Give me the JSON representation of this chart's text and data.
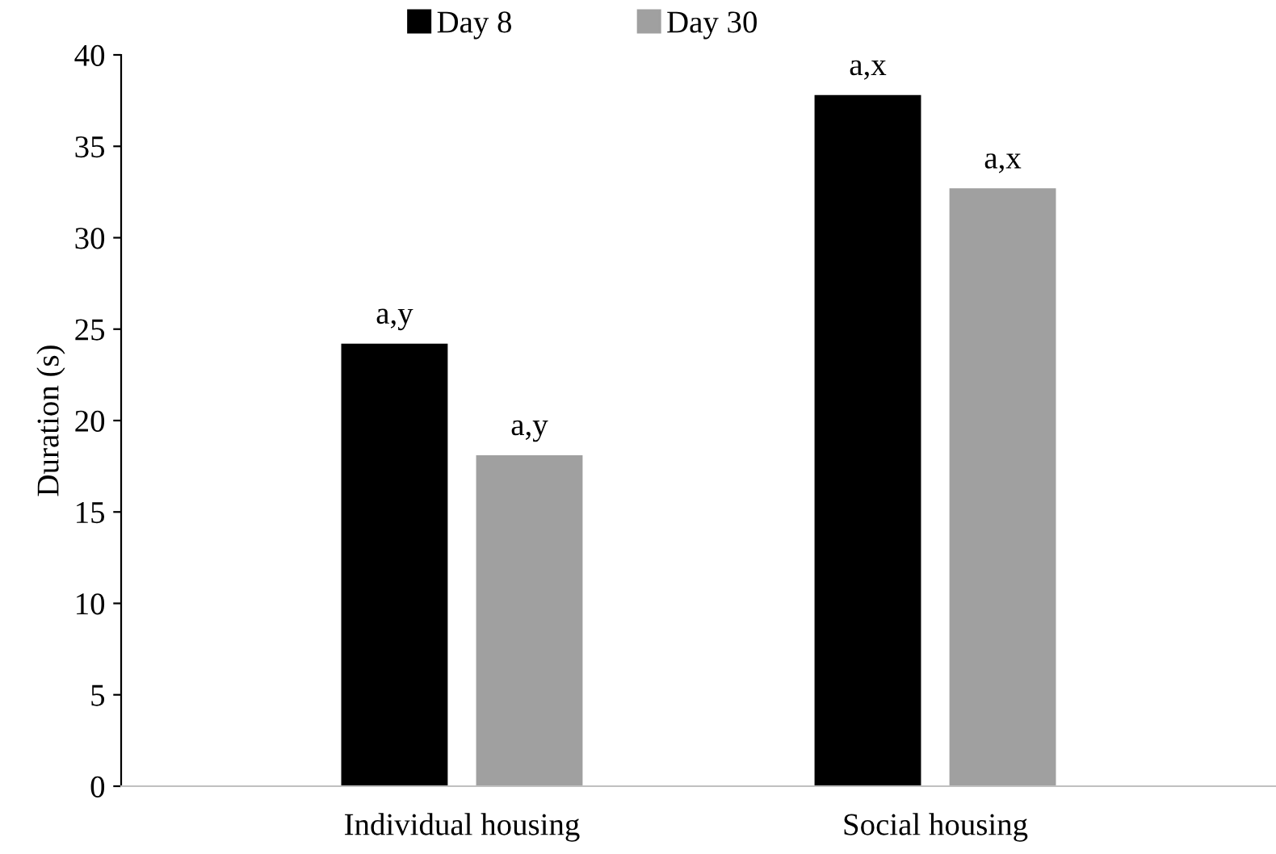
{
  "chart_data": {
    "type": "bar",
    "ylabel": "Duration (s)",
    "categories": [
      "Individual housing",
      "Social housing"
    ],
    "series": [
      {
        "name": "Day 8",
        "color": "#000000",
        "values": [
          24.2,
          37.8
        ],
        "value_labels": [
          "a,y",
          "a,x"
        ]
      },
      {
        "name": "Day 30",
        "color": "#a0a0a0",
        "values": [
          18.1,
          32.7
        ],
        "value_labels": [
          "a,y",
          "a,x"
        ]
      }
    ],
    "ylim": [
      0,
      40
    ],
    "yticks": [
      0,
      5,
      10,
      15,
      20,
      25,
      30,
      35,
      40
    ],
    "grid": false,
    "legend": "top"
  }
}
